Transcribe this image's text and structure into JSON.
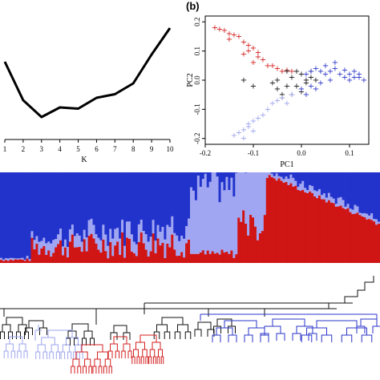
{
  "chart_data": [
    {
      "type": "line",
      "xlabel": "K",
      "ylabel": "",
      "x": [
        1,
        2,
        3,
        4,
        5,
        6,
        7,
        8,
        9,
        10
      ],
      "values": [
        0.62,
        0.3,
        0.16,
        0.24,
        0.23,
        0.32,
        0.35,
        0.44,
        0.68,
        0.9
      ],
      "xticks": [
        "1",
        "2",
        "3",
        "4",
        "5",
        "6",
        "7",
        "8",
        "9",
        "10"
      ],
      "ylim": [
        0,
        1
      ]
    },
    {
      "type": "scatter",
      "panel_label": "(b)",
      "xlabel": "PC1",
      "ylabel": "PC2",
      "xlim": [
        -0.2,
        0.14
      ],
      "ylim": [
        -0.22,
        0.22
      ],
      "xticks": [
        "-0.2",
        "-0.1",
        "0.0",
        "0.1"
      ],
      "yticks": [
        "-0.2",
        "-0.1",
        "0.0",
        "0.1",
        "0.2"
      ],
      "xtick_values": [
        -0.2,
        -0.1,
        0.0,
        0.1
      ],
      "ytick_values": [
        -0.2,
        -0.1,
        0.0,
        0.1,
        0.2
      ],
      "marker": "+",
      "series": [
        {
          "color": "#d42020",
          "points": [
            [
              -0.18,
              0.18
            ],
            [
              -0.17,
              0.175
            ],
            [
              -0.16,
              0.17
            ],
            [
              -0.15,
              0.16
            ],
            [
              -0.14,
              0.155
            ],
            [
              -0.15,
              0.14
            ],
            [
              -0.13,
              0.15
            ],
            [
              -0.12,
              0.13
            ],
            [
              -0.11,
              0.12
            ],
            [
              -0.1,
              0.11
            ],
            [
              -0.12,
              0.09
            ],
            [
              -0.09,
              0.08
            ],
            [
              -0.08,
              0.07
            ],
            [
              -0.07,
              0.05
            ],
            [
              -0.06,
              0.05
            ],
            [
              -0.05,
              0.04
            ],
            [
              -0.04,
              0.03
            ],
            [
              -0.03,
              0.035
            ],
            [
              -0.02,
              0.03
            ],
            [
              -0.1,
              0.06
            ],
            [
              -0.11,
              0.1
            ],
            [
              -0.09,
              0.095
            ]
          ]
        },
        {
          "color": "#111111",
          "points": [
            [
              -0.12,
              0.0
            ],
            [
              -0.1,
              -0.02
            ],
            [
              -0.06,
              -0.01
            ],
            [
              -0.05,
              -0.03
            ],
            [
              -0.04,
              -0.05
            ],
            [
              -0.03,
              -0.02
            ],
            [
              -0.02,
              0.01
            ],
            [
              -0.01,
              -0.02
            ],
            [
              0.0,
              0.02
            ],
            [
              0.01,
              0.0
            ],
            [
              -0.02,
              -0.05
            ],
            [
              -0.04,
              -0.06
            ],
            [
              0.0,
              -0.04
            ],
            [
              0.02,
              0.01
            ],
            [
              -0.01,
              0.03
            ],
            [
              0.01,
              -0.01
            ],
            [
              0.03,
              0.0
            ],
            [
              -0.05,
              0.0
            ],
            [
              -0.03,
              0.03
            ],
            [
              0.02,
              0.03
            ]
          ]
        },
        {
          "color": "#2b35c8",
          "points": [
            [
              0.01,
              0.02
            ],
            [
              0.02,
              0.03
            ],
            [
              0.03,
              0.04
            ],
            [
              0.04,
              0.03
            ],
            [
              0.05,
              0.02
            ],
            [
              0.06,
              0.03
            ],
            [
              0.07,
              0.04
            ],
            [
              0.08,
              0.02
            ],
            [
              0.09,
              0.01
            ],
            [
              0.1,
              0.02
            ],
            [
              0.11,
              0.01
            ],
            [
              0.12,
              0.02
            ],
            [
              0.13,
              0.0
            ],
            [
              0.1,
              0.0
            ],
            [
              0.06,
              0.0
            ],
            [
              0.04,
              -0.01
            ],
            [
              0.02,
              -0.02
            ],
            [
              0.03,
              -0.03
            ],
            [
              0.05,
              0.05
            ],
            [
              0.07,
              0.06
            ],
            [
              0.09,
              0.035
            ],
            [
              0.11,
              0.03
            ],
            [
              0.0,
              -0.03
            ],
            [
              0.01,
              -0.05
            ],
            [
              0.12,
              0.01
            ]
          ]
        },
        {
          "color": "#9ea6ee",
          "points": [
            [
              -0.04,
              -0.06
            ],
            [
              -0.06,
              -0.08
            ],
            [
              -0.07,
              -0.1
            ],
            [
              -0.09,
              -0.13
            ],
            [
              -0.1,
              -0.14
            ],
            [
              -0.11,
              -0.16
            ],
            [
              -0.12,
              -0.17
            ],
            [
              -0.13,
              -0.18
            ],
            [
              -0.14,
              -0.19
            ],
            [
              -0.11,
              -0.15
            ],
            [
              -0.08,
              -0.12
            ],
            [
              -0.05,
              -0.07
            ],
            [
              -0.02,
              -0.05
            ],
            [
              -0.03,
              -0.08
            ],
            [
              -0.1,
              -0.175
            ],
            [
              -0.12,
              -0.2
            ]
          ]
        }
      ]
    },
    {
      "type": "bar",
      "subtype": "stacked-proportion",
      "ylim": [
        0,
        1
      ],
      "colors": [
        "#d01515",
        "#a0a6f2",
        "#2233cc"
      ],
      "note_order": "each bar stacks red (bottom), light blue, dark blue (top)",
      "n_bars": 160
    },
    {
      "type": "tree",
      "colors": [
        "#111111",
        "#9ea6ee",
        "#d42020",
        "#2b35c8"
      ]
    }
  ]
}
